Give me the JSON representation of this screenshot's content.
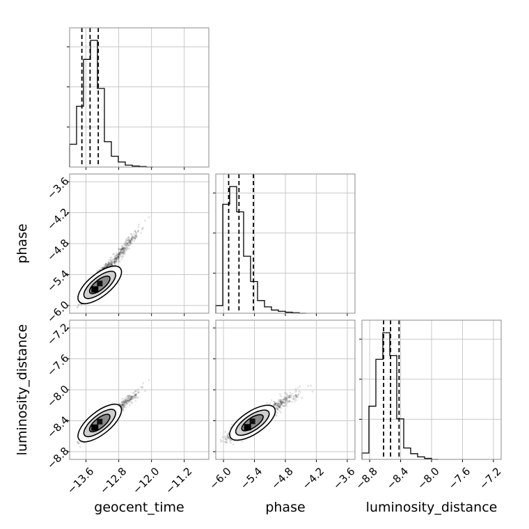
{
  "chart_data": {
    "type": "corner",
    "parameters": [
      "geocent_time",
      "phase",
      "luminosity_distance"
    ],
    "axis_labels": {
      "geocent_time": "geocent_time",
      "phase": "phase",
      "luminosity_distance": "luminosity_distance"
    },
    "ranges": {
      "geocent_time": [
        -14.0,
        -10.6
      ],
      "phase": [
        -6.15,
        -3.45
      ],
      "luminosity_distance": [
        -8.9,
        -7.1
      ]
    },
    "ticks": {
      "geocent_time": [
        {
          "value": -13.6,
          "label": "−13.6"
        },
        {
          "value": -12.8,
          "label": "−12.8"
        },
        {
          "value": -12.0,
          "label": "−12.0"
        },
        {
          "value": -11.2,
          "label": "−11.2"
        }
      ],
      "phase": [
        {
          "value": -6.0,
          "label": "−6.0"
        },
        {
          "value": -5.4,
          "label": "−5.4"
        },
        {
          "value": -4.8,
          "label": "−4.8"
        },
        {
          "value": -4.2,
          "label": "−4.2"
        },
        {
          "value": -3.6,
          "label": "−3.6"
        }
      ],
      "luminosity_distance": [
        {
          "value": -8.8,
          "label": "−8.8"
        },
        {
          "value": -8.4,
          "label": "−8.4"
        },
        {
          "value": -8.0,
          "label": "−8.0"
        },
        {
          "value": -7.6,
          "label": "−7.6"
        },
        {
          "value": -7.2,
          "label": "−7.2"
        }
      ]
    },
    "grid": true,
    "histograms": {
      "geocent_time": {
        "bin_edges": [
          -14.0,
          -13.83,
          -13.66,
          -13.49,
          -13.32,
          -13.15,
          -12.98,
          -12.81,
          -12.64,
          -12.47,
          -12.3,
          -12.13,
          -11.96
        ],
        "counts": [
          0.18,
          0.48,
          0.85,
          1.0,
          0.62,
          0.2,
          0.085,
          0.04,
          0.015,
          0.008,
          0.004,
          0.0
        ]
      },
      "phase": {
        "bin_edges": [
          -6.15,
          -6.015,
          -5.88,
          -5.745,
          -5.61,
          -5.475,
          -5.34,
          -5.205,
          -5.07,
          -4.935,
          -4.8,
          -4.665,
          -4.53,
          -4.395
        ],
        "counts": [
          0.06,
          0.86,
          1.0,
          0.8,
          0.45,
          0.25,
          0.1,
          0.05,
          0.025,
          0.015,
          0.008,
          0.004,
          0.0
        ]
      },
      "luminosity_distance": {
        "bin_edges": [
          -8.9,
          -8.81,
          -8.72,
          -8.63,
          -8.54,
          -8.45,
          -8.36,
          -8.27,
          -8.18,
          -8.09,
          -8.0,
          -7.91
        ],
        "counts": [
          0.05,
          0.42,
          0.79,
          1.0,
          0.82,
          0.32,
          0.09,
          0.045,
          0.02,
          0.008,
          0.0
        ]
      }
    },
    "quantiles": {
      "geocent_time": [
        -13.7,
        -13.5,
        -13.3
      ],
      "phase": [
        -5.9,
        -5.7,
        -5.42
      ],
      "luminosity_distance": [
        -8.62,
        -8.53,
        -8.42
      ]
    },
    "correlations": {
      "phase|geocent_time": 0.9,
      "luminosity_distance|geocent_time": 0.9,
      "luminosity_distance|phase": 0.75
    }
  }
}
